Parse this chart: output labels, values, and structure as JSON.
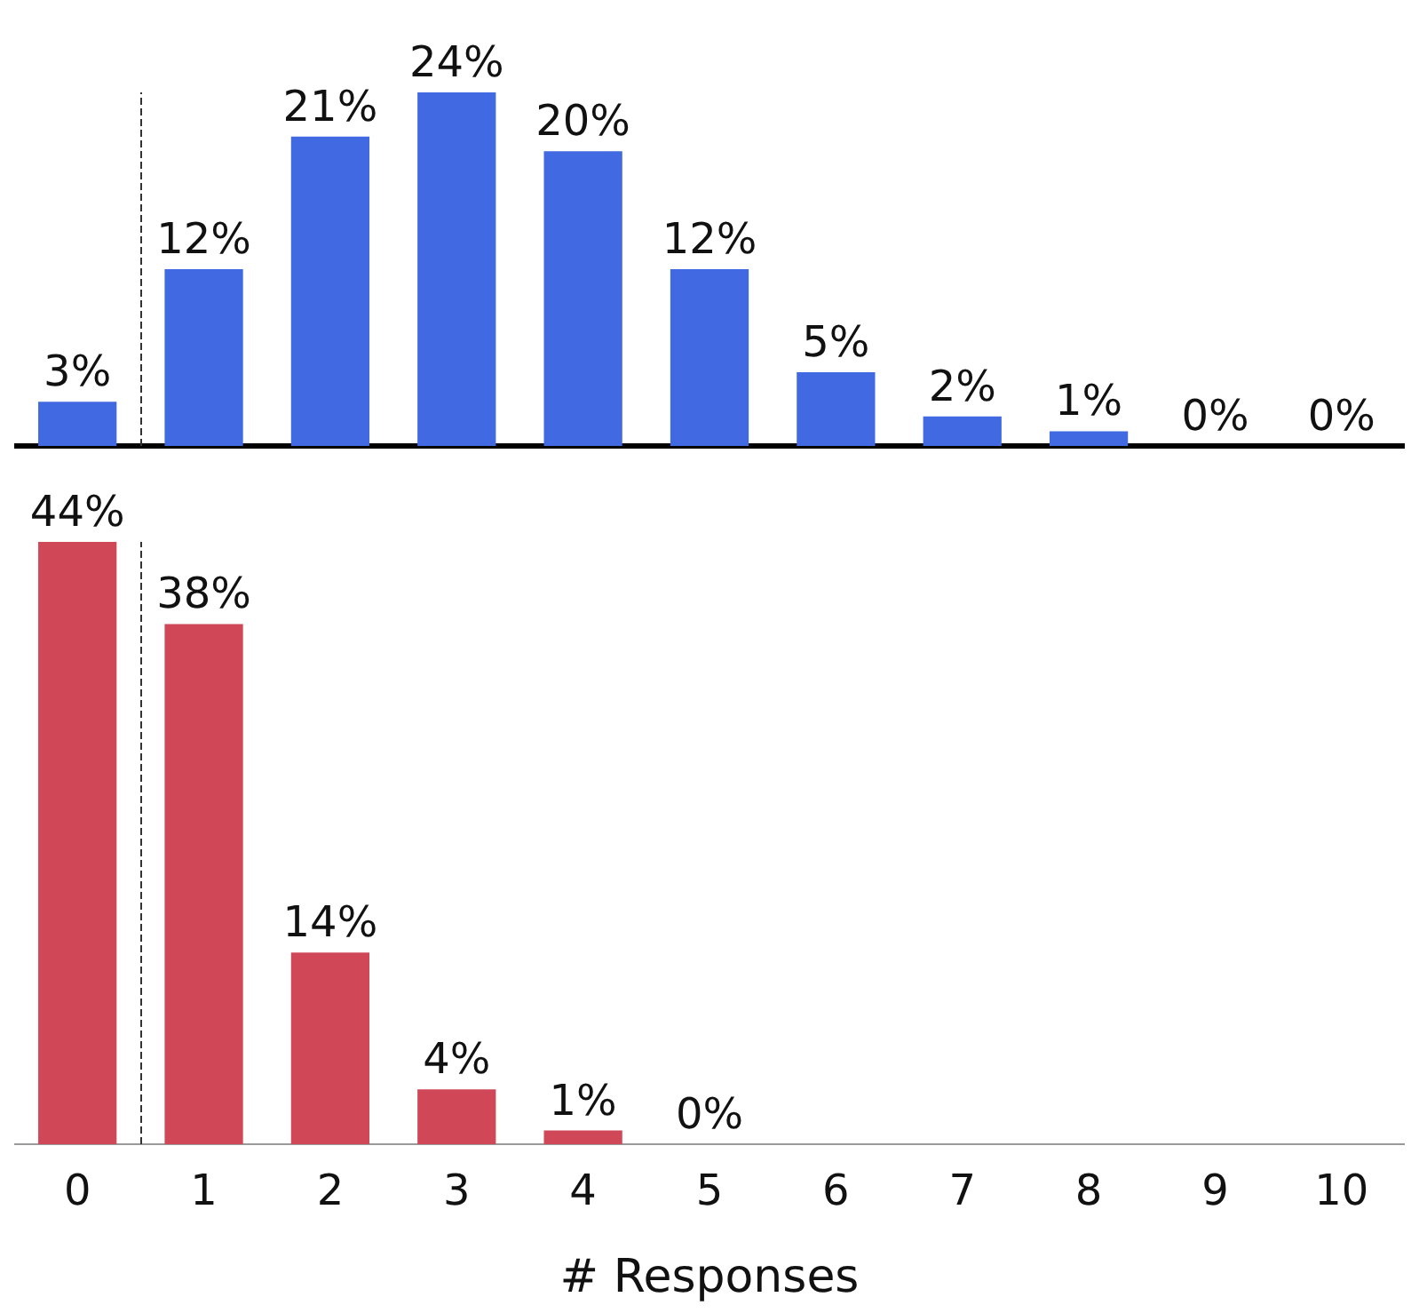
{
  "chart_data": [
    {
      "type": "bar",
      "x": [
        0,
        1,
        2,
        3,
        4,
        5,
        6,
        7,
        8,
        9,
        10
      ],
      "xlim": [
        -0.5,
        10.5
      ],
      "xticks": [
        0,
        1,
        2,
        3,
        4,
        5,
        6,
        7,
        8,
        9,
        10
      ],
      "tick_labels": false,
      "series": [
        {
          "color": "#4169e1",
          "values": [
            3,
            12,
            21,
            24,
            20,
            12,
            5,
            2,
            1,
            0,
            0
          ],
          "value_labels": [
            "3%",
            "12%",
            "21%",
            "24%",
            "20%",
            "12%",
            "5%",
            "2%",
            "1%",
            "0%",
            "0%"
          ]
        }
      ],
      "ref_lines": [
        {
          "axis": "x",
          "value": 0.5,
          "line_style": "dashed",
          "color": "#333333"
        }
      ],
      "grid": false
    },
    {
      "type": "bar",
      "xlim": [
        -0.5,
        10.5
      ],
      "xticks": [
        0,
        1,
        2,
        3,
        4,
        5,
        6,
        7,
        8,
        9,
        10
      ],
      "tick_labels": "x",
      "xlabel": "# Responses",
      "series": [
        {
          "color": "#d04858",
          "x": [
            0,
            1,
            2,
            3,
            4,
            5
          ],
          "values": [
            44,
            38,
            14,
            4,
            1,
            0
          ],
          "value_labels": [
            "44%",
            "38%",
            "14%",
            "4%",
            "1%",
            "0%"
          ]
        }
      ],
      "ref_lines": [
        {
          "axis": "x",
          "value": 0.5,
          "line_style": "dashed",
          "color": "#333333"
        }
      ],
      "grid": false
    }
  ]
}
